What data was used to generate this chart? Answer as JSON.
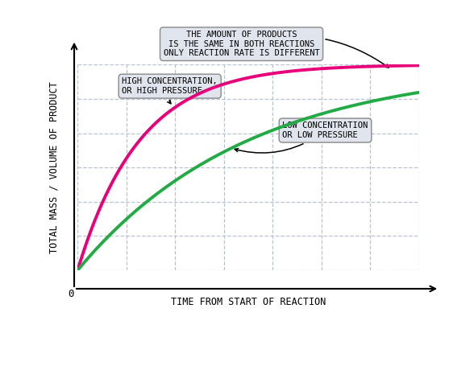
{
  "background_color": "#ffffff",
  "grid_color": "#b8c4d4",
  "xlabel": "TIME FROM START OF REACTION",
  "ylabel": "TOTAL MASS / VOLUME OF PRODUCT",
  "high_color": "#e8007a",
  "low_color": "#22aa44",
  "high_label_line1": "HIGH CONCENTRATION,",
  "high_label_line2": "OR HIGH PRESSURE",
  "low_label_line1": "LOW CONCENTRATION",
  "low_label_line2": "OR LOW PRESSURE",
  "top_box_line1": "THE AMOUNT OF PRODUCTS",
  "top_box_line2": "IS THE SAME IN BOTH REACTIONS",
  "top_box_line3": "ONLY REACTION RATE IS DIFFERENT",
  "high_k": 5.5,
  "low_k": 2.0,
  "asymptote": 1.0,
  "x_max": 10,
  "font_family": "monospace",
  "label_fontsize": 7.5,
  "axis_label_fontsize": 8.5,
  "curve_linewidth": 2.8,
  "box_facecolor": "#e0e4ec",
  "box_edgecolor": "#888888"
}
